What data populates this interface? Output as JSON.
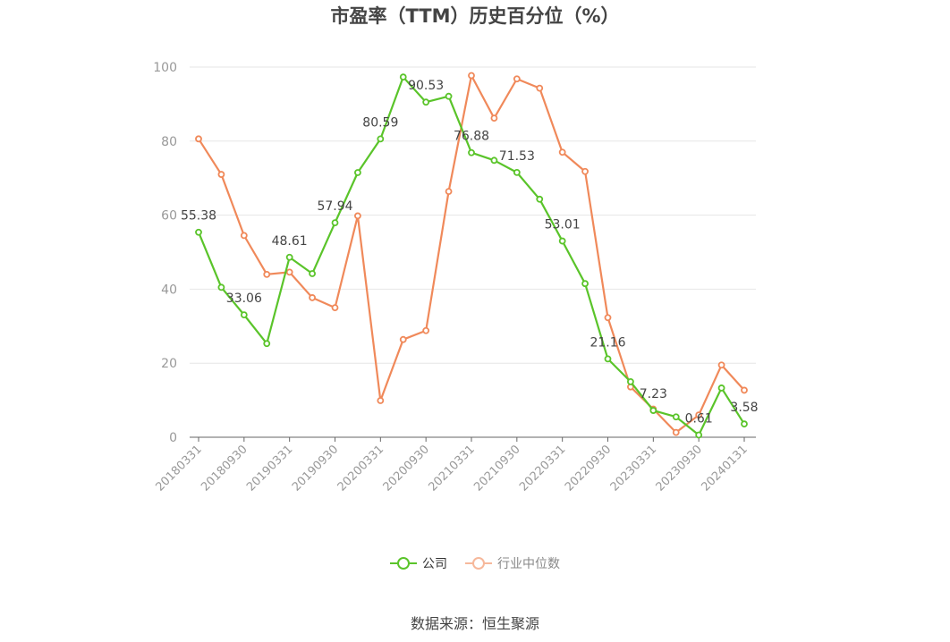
{
  "title": "市盈率（TTM）历史百分位（%）",
  "source": "数据来源：恒生聚源",
  "colors": {
    "company": "#5ac42a",
    "industry": "#f0895a",
    "grid": "#e6e6e6",
    "axis": "#666666",
    "label": "#999999"
  },
  "legend": {
    "company": "公司",
    "industry": "行业中位数"
  },
  "chart_data": {
    "type": "line",
    "title": "市盈率（TTM）历史百分位（%）",
    "ylim": [
      0,
      100
    ],
    "yticks": [
      0,
      20,
      40,
      60,
      80,
      100
    ],
    "x": [
      "20180331",
      "20180630",
      "20180930",
      "20181231",
      "20190331",
      "20190630",
      "20190930",
      "20191231",
      "20200331",
      "20200630",
      "20200930",
      "20201231",
      "20210331",
      "20210630",
      "20210930",
      "20211231",
      "20220331",
      "20220630",
      "20220930",
      "20221231",
      "20230331",
      "20230630",
      "20230930",
      "20231231",
      "20240131"
    ],
    "xtick_labels": [
      "20180331",
      "20180930",
      "20190331",
      "20190930",
      "20200331",
      "20200930",
      "20210331",
      "20210930",
      "20220331",
      "20220930",
      "20230331",
      "20230930",
      "20240131"
    ],
    "xtick_index": [
      0,
      2,
      4,
      6,
      8,
      10,
      12,
      14,
      16,
      18,
      20,
      22,
      24
    ],
    "series": [
      {
        "name": "公司",
        "key": "company",
        "values": [
          55.38,
          40.5,
          33.06,
          25.3,
          48.61,
          44.2,
          57.94,
          71.5,
          80.59,
          97.3,
          90.53,
          92.1,
          76.88,
          74.8,
          71.53,
          64.3,
          53.01,
          41.5,
          21.16,
          15.0,
          7.23,
          5.5,
          0.61,
          13.3,
          3.58
        ],
        "labels": {
          "0": "55.38",
          "2": "33.06",
          "4": "48.61",
          "6": "57.94",
          "8": "80.59",
          "10": "90.53",
          "12": "76.88",
          "14": "71.53",
          "16": "53.01",
          "18": "21.16",
          "20": "7.23",
          "22": "0.61",
          "24": "3.58"
        }
      },
      {
        "name": "行业中位数",
        "key": "industry",
        "values": [
          80.6,
          71.0,
          54.5,
          44.0,
          44.6,
          37.7,
          35.0,
          59.8,
          9.9,
          26.4,
          28.8,
          66.4,
          97.7,
          86.2,
          96.8,
          94.3,
          77.0,
          71.8,
          32.3,
          13.6,
          7.6,
          1.3,
          6.0,
          19.5,
          12.7
        ],
        "labels": {}
      }
    ],
    "legend_position": "bottom",
    "grid": true
  }
}
